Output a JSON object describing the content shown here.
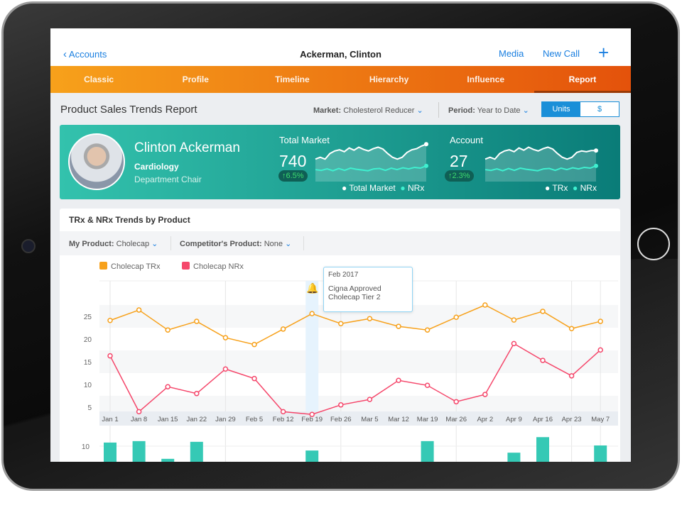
{
  "nav": {
    "back_label": "Accounts",
    "title": "Ackerman, Clinton",
    "media_label": "Media",
    "new_call_label": "New Call",
    "add_icon": "plus-icon"
  },
  "tabs": [
    {
      "label": "Classic"
    },
    {
      "label": "Profile"
    },
    {
      "label": "Timeline"
    },
    {
      "label": "Hierarchy"
    },
    {
      "label": "Influence"
    },
    {
      "label": "Report",
      "active": true
    }
  ],
  "report": {
    "title": "Product Sales Trends Report",
    "market_label": "Market:",
    "market_value": "Cholesterol Reducer",
    "period_label": "Period:",
    "period_value": "Year to Date",
    "units_label": "Units",
    "dollar_label": "$",
    "selected_toggle": "Units"
  },
  "profile": {
    "name": "Clinton Ackerman",
    "specialty": "Cardiology",
    "role": "Department Chair"
  },
  "total_market": {
    "label": "Total Market",
    "value": "740",
    "change": "6.5%",
    "legend": [
      "Total Market",
      "NRx"
    ],
    "line1": [
      6,
      6.5,
      6,
      7.5,
      8.2,
      8.5,
      8,
      9,
      8.4,
      9.2,
      8.6,
      8.2,
      8.8,
      9.2,
      8.7,
      7.5,
      6.5,
      6,
      6.5,
      7.8,
      8.5,
      8.8,
      9.5,
      10
    ],
    "line2": [
      3.2,
      3,
      3.4,
      2.9,
      3.5,
      3,
      3.6,
      3.3,
      3.1,
      2.9,
      3.4,
      3.5,
      3.0,
      3.6,
      3.2,
      3.7,
      3.4,
      3.8,
      3.6,
      4.2
    ]
  },
  "account": {
    "label": "Account",
    "value": "27",
    "change": "2.3%",
    "legend": [
      "TRx",
      "NRx"
    ],
    "line1": [
      6,
      6.5,
      6,
      7.5,
      8.2,
      8.5,
      8,
      9,
      8.4,
      9.2,
      8.6,
      8.2,
      8.8,
      9.2,
      8.7,
      7.5,
      6.5,
      6,
      6.5,
      7.8,
      8.2,
      8,
      8.3,
      8.3
    ],
    "line2": [
      3.2,
      3,
      3.4,
      2.9,
      3.5,
      3,
      3.6,
      3.3,
      3.1,
      2.9,
      3.4,
      3.5,
      3.0,
      3.6,
      3.2,
      3.7,
      3.4,
      3.8,
      3.6,
      4.2
    ]
  },
  "colors": {
    "accent": "#1a7fe0",
    "trx": "#f7a11b",
    "nrx": "#f5476b",
    "bar": "#35c9b5",
    "teal_start": "#33c2ad",
    "teal_end": "#0a7c78",
    "up": "#3ddc6f"
  },
  "trends": {
    "title": "TRx & NRx Trends by Product",
    "my_product_label": "My Product:",
    "my_product_value": "Cholecap",
    "competitor_label": "Competitor's Product:",
    "competitor_value": "None"
  },
  "tooltip": {
    "date": "Feb 2017",
    "line1": "Cigna Approved",
    "line2": "Cholecap Tier 2",
    "icon": "bell-icon",
    "category": "Feb 19"
  },
  "chart_data": {
    "type": "line",
    "categories": [
      "Jan 1",
      "Jan 8",
      "Jan 15",
      "Jan 22",
      "Jan 29",
      "Feb 5",
      "Feb 12",
      "Feb 19",
      "Feb 26",
      "Mar 5",
      "Mar 12",
      "Mar 19",
      "Mar 26",
      "Apr 2",
      "Apr 9",
      "Apr 16",
      "Apr 23",
      "May 7"
    ],
    "series": [
      {
        "name": "Cholecap TRx",
        "values": [
          24.1,
          26.4,
          22,
          23.9,
          20.3,
          18.8,
          22.2,
          25.6,
          23.4,
          24.5,
          22.8,
          22,
          24.8,
          27.5,
          24.2,
          26.1,
          22.3,
          23.9
        ]
      },
      {
        "name": "Cholecap NRx",
        "values": [
          16.3,
          4,
          9.5,
          8,
          13.4,
          11.3,
          4,
          3.4,
          5.5,
          6.7,
          10.9,
          9.8,
          6.2,
          7.8,
          19,
          15.3,
          11.9,
          17.6
        ]
      }
    ],
    "yticks": [
      5,
      10,
      15,
      20,
      25
    ],
    "ylim": [
      0,
      29
    ],
    "grid": true,
    "legend": "top-left",
    "bars": {
      "categories": [
        "Jan 1",
        "Jan 8",
        "Jan 15",
        "Jan 22",
        "Feb 19",
        "Mar 19",
        "Apr 9",
        "Apr 16",
        "May 7"
      ],
      "values": [
        11,
        11.4,
        6.5,
        11.2,
        8.8,
        11.4,
        8.2,
        12.5,
        10.2
      ],
      "ytick": "10"
    }
  }
}
